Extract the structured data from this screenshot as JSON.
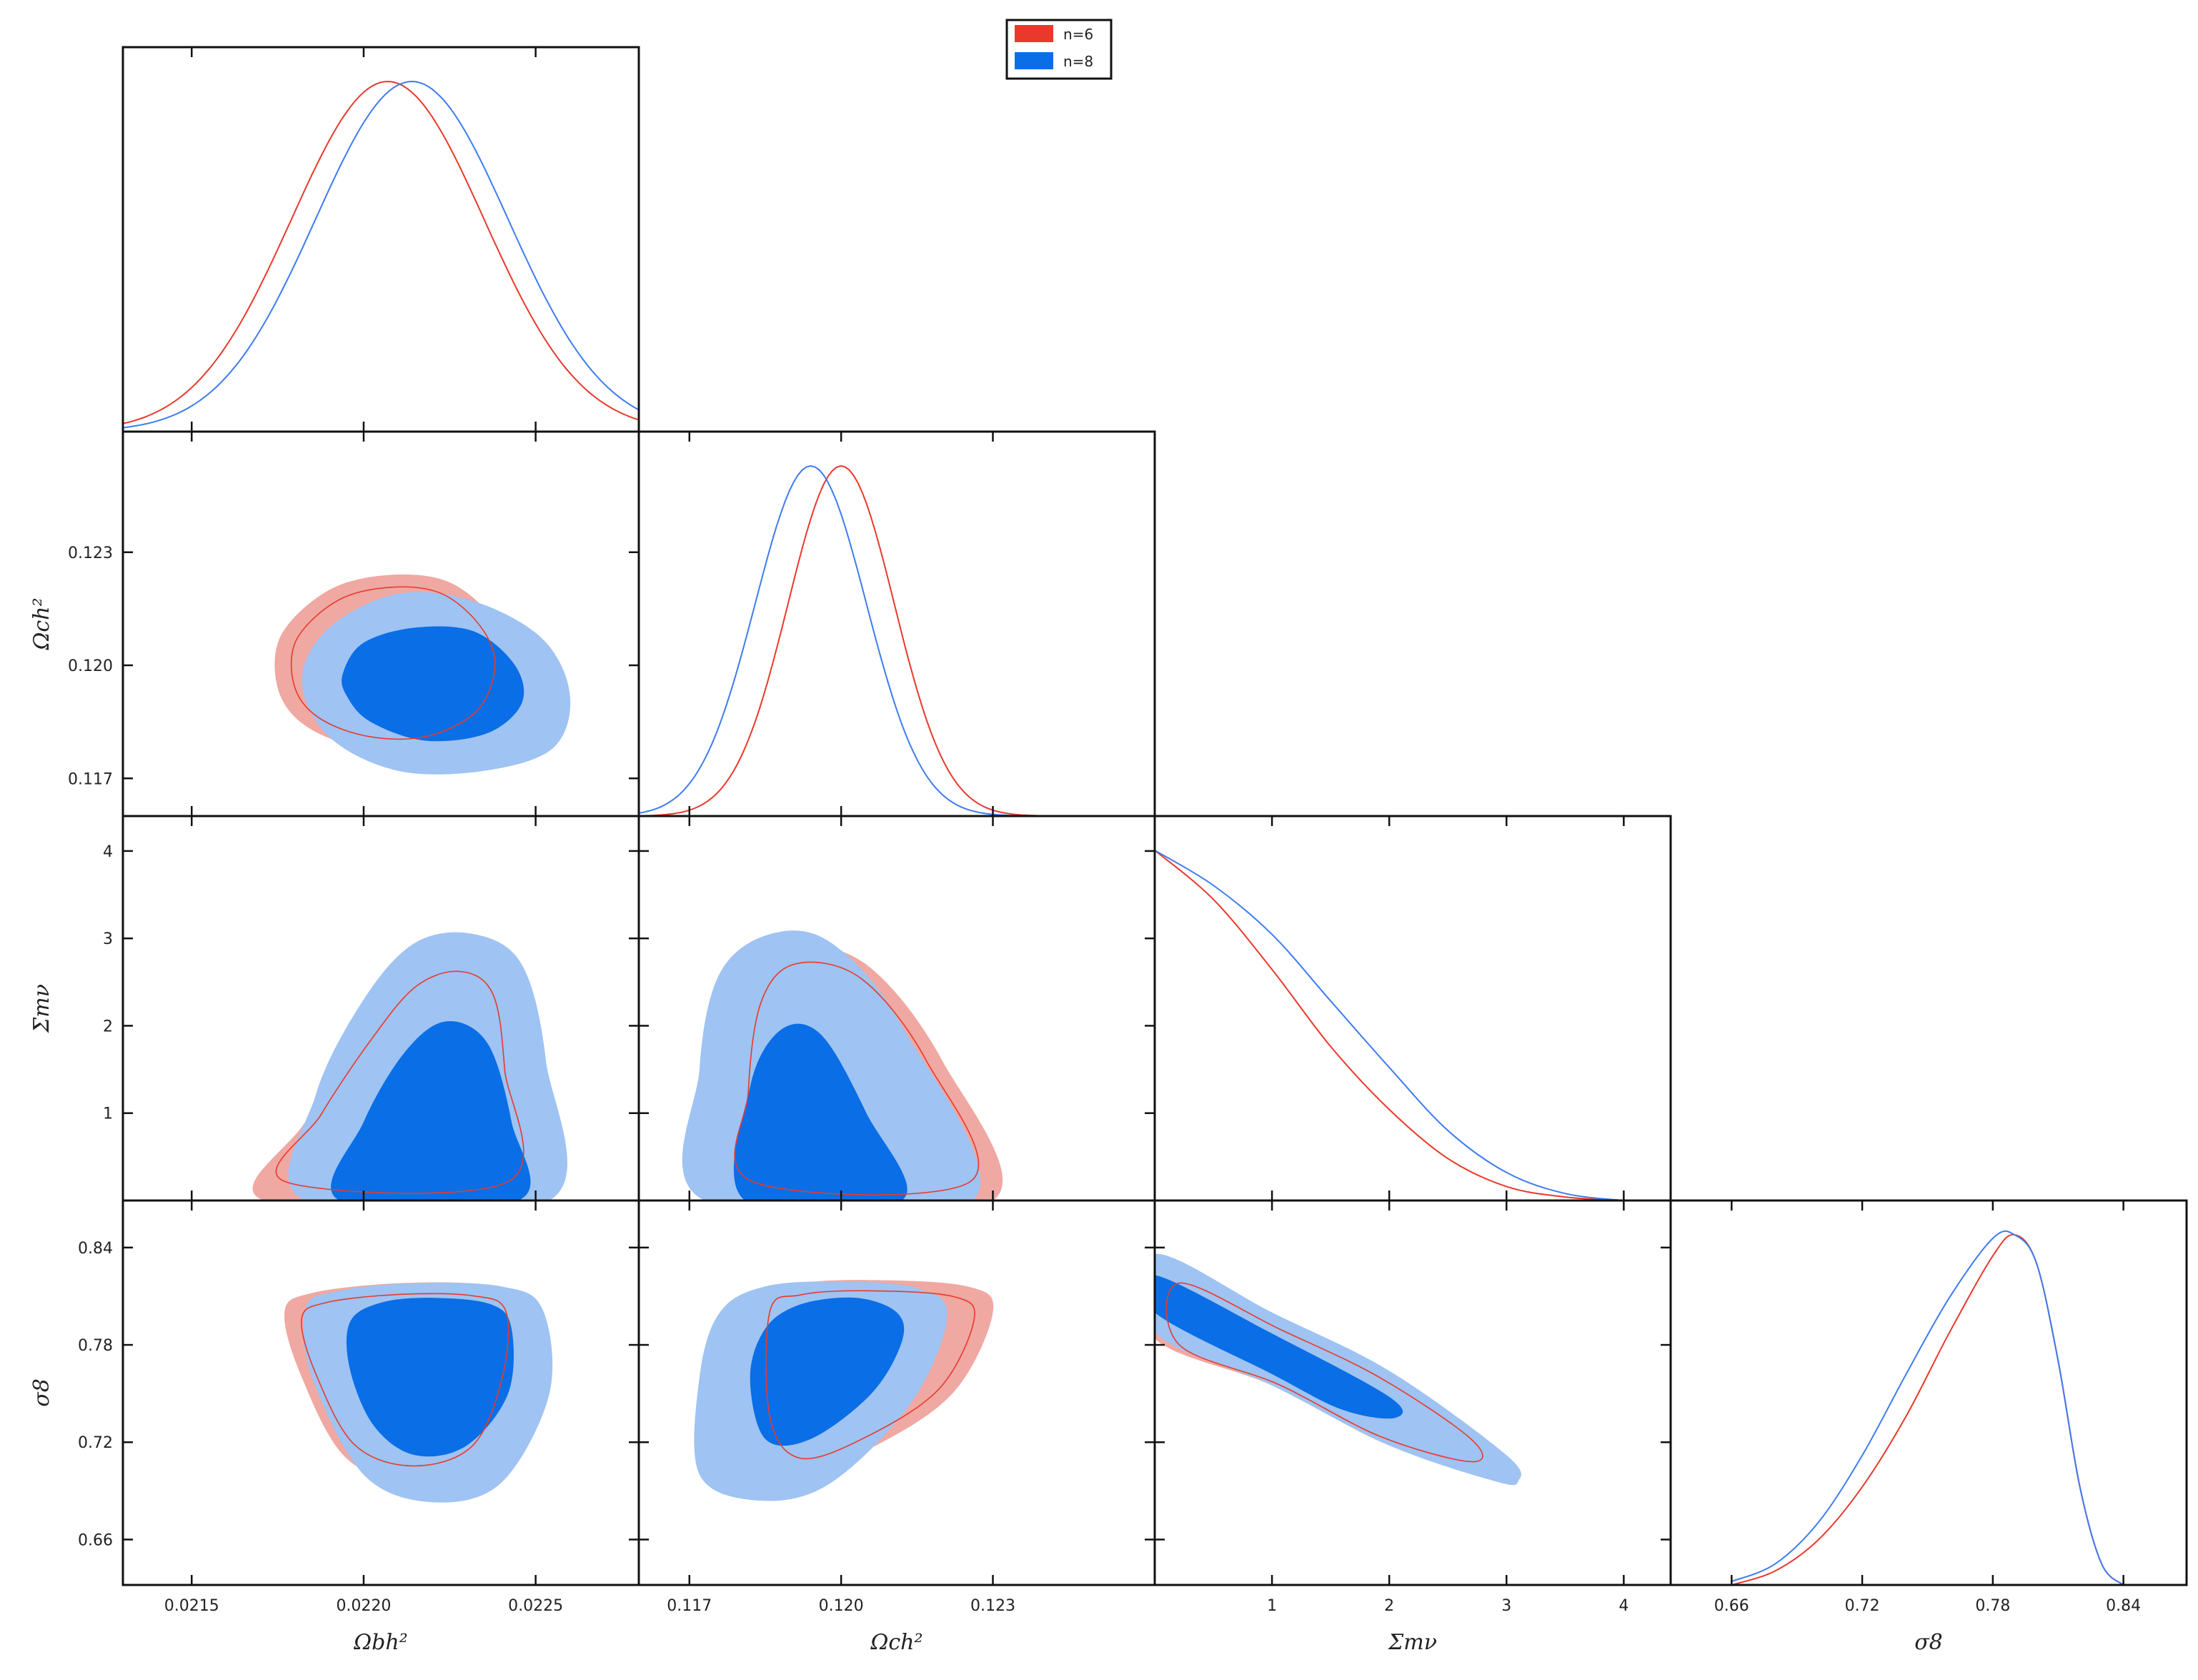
{
  "chart_data": {
    "type": "corner",
    "title": "",
    "legend": {
      "placement": "top-center",
      "entries": [
        {
          "label": "n=6",
          "color": "#e8392b"
        },
        {
          "label": "n=8",
          "color": "#0a6ee6"
        }
      ]
    },
    "colors": {
      "n6_line": "#e8392b",
      "n6_fill68": "#e8392b",
      "n6_fill95": "#f0a8a2",
      "n8_line": "#3d7cf0",
      "n8_fill68": "#0a6ee6",
      "n8_fill95": "#9fc3f2"
    },
    "parameters": [
      {
        "key": "ob",
        "label": "Ωbh²",
        "range": [
          0.0213,
          0.0228
        ],
        "ticks": [
          0.0215,
          0.022,
          0.0225
        ],
        "tick_labels": [
          "0.0215",
          "0.0220",
          "0.0225"
        ]
      },
      {
        "key": "oc",
        "label": "Ωch²",
        "range": [
          0.116,
          0.1262
        ],
        "ticks": [
          0.117,
          0.12,
          0.123
        ],
        "tick_labels": [
          "0.117",
          "0.120",
          "0.123"
        ]
      },
      {
        "key": "mnu",
        "label": "Σmν",
        "range": [
          0.0,
          4.4
        ],
        "ticks": [
          1,
          2,
          3,
          4
        ],
        "tick_labels": [
          "1",
          "2",
          "3",
          "4"
        ]
      },
      {
        "key": "s8",
        "label": "σ8",
        "range": [
          0.632,
          0.869
        ],
        "ticks": [
          0.66,
          0.72,
          0.78,
          0.84
        ],
        "tick_labels": [
          "0.66",
          "0.72",
          "0.78",
          "0.84"
        ]
      }
    ],
    "marginals": [
      {
        "param": "ob",
        "series": [
          {
            "name": "n=6",
            "peak": 0.02207,
            "sigma": 0.00028
          },
          {
            "name": "n=8",
            "peak": 0.02214,
            "sigma": 0.00028
          }
        ]
      },
      {
        "param": "oc",
        "series": [
          {
            "name": "n=6",
            "peak": 0.12,
            "sigma": 0.00105
          },
          {
            "name": "n=8",
            "peak": 0.1194,
            "sigma": 0.0011
          }
        ]
      },
      {
        "param": "mnu",
        "series": [
          {
            "name": "n=6",
            "x": [
              0.0,
              0.5,
              1.0,
              1.5,
              2.0,
              2.5,
              3.0,
              3.5,
              4.0
            ],
            "y": [
              1.0,
              0.86,
              0.66,
              0.44,
              0.26,
              0.12,
              0.04,
              0.01,
              0.0
            ]
          },
          {
            "name": "n=8",
            "x": [
              0.0,
              0.5,
              1.0,
              1.5,
              2.0,
              2.5,
              3.0,
              3.5,
              4.0
            ],
            "y": [
              1.0,
              0.9,
              0.76,
              0.57,
              0.38,
              0.2,
              0.08,
              0.02,
              0.0
            ]
          }
        ]
      },
      {
        "param": "s8",
        "series": [
          {
            "name": "n=6",
            "x": [
              0.66,
              0.68,
              0.7,
              0.72,
              0.74,
              0.76,
              0.78,
              0.79,
              0.8,
              0.81,
              0.82,
              0.83,
              0.84
            ],
            "y": [
              0.0,
              0.04,
              0.13,
              0.28,
              0.48,
              0.72,
              0.94,
              1.0,
              0.92,
              0.64,
              0.28,
              0.06,
              0.0
            ]
          },
          {
            "name": "n=8",
            "x": [
              0.66,
              0.68,
              0.7,
              0.72,
              0.74,
              0.76,
              0.78,
              0.79,
              0.8,
              0.81,
              0.82,
              0.83,
              0.84
            ],
            "y": [
              0.01,
              0.06,
              0.18,
              0.37,
              0.6,
              0.82,
              0.99,
              1.0,
              0.92,
              0.64,
              0.28,
              0.06,
              0.0
            ]
          }
        ]
      }
    ],
    "contours": [
      {
        "x": "ob",
        "y": "oc",
        "series": [
          {
            "name": "n=6",
            "level": "95",
            "points": [
              [
                0.02175,
                0.1194
              ],
              [
                0.02176,
                0.1208
              ],
              [
                0.0219,
                0.122
              ],
              [
                0.02208,
                0.1224
              ],
              [
                0.02225,
                0.1222
              ],
              [
                0.02238,
                0.1212
              ],
              [
                0.02243,
                0.12
              ],
              [
                0.02237,
                0.1186
              ],
              [
                0.0222,
                0.1178
              ],
              [
                0.022,
                0.1178
              ],
              [
                0.02183,
                0.1184
              ]
            ]
          },
          {
            "name": "n=8",
            "level": "95",
            "points": [
              [
                0.02182,
                0.1196
              ],
              [
                0.0219,
                0.121
              ],
              [
                0.0221,
                0.1219
              ],
              [
                0.02232,
                0.1217
              ],
              [
                0.02252,
                0.1207
              ],
              [
                0.0226,
                0.1192
              ],
              [
                0.02255,
                0.1178
              ],
              [
                0.02235,
                0.1172
              ],
              [
                0.0221,
                0.1172
              ],
              [
                0.0219,
                0.1181
              ]
            ]
          },
          {
            "name": "n=8",
            "level": "68",
            "points": [
              [
                0.02194,
                0.1198
              ],
              [
                0.022,
                0.1206
              ],
              [
                0.02215,
                0.121
              ],
              [
                0.02232,
                0.1209
              ],
              [
                0.02244,
                0.12
              ],
              [
                0.02246,
                0.119
              ],
              [
                0.02236,
                0.1182
              ],
              [
                0.02218,
                0.118
              ],
              [
                0.02202,
                0.1185
              ],
              [
                0.02195,
                0.1192
              ]
            ]
          }
        ]
      },
      {
        "x": "ob",
        "y": "mnu",
        "series": [
          {
            "name": "n=6",
            "level": "95",
            "points": [
              [
                0.02171,
                0.0
              ],
              [
                0.02183,
                0.9
              ],
              [
                0.022,
                1.9
              ],
              [
                0.02215,
                2.6
              ],
              [
                0.0223,
                2.8
              ],
              [
                0.02241,
                2.5
              ],
              [
                0.02245,
                1.5
              ],
              [
                0.02246,
                0.0
              ]
            ]
          },
          {
            "name": "n=8",
            "level": "95",
            "points": [
              [
                0.02183,
                0.0
              ],
              [
                0.02186,
                1.2
              ],
              [
                0.022,
                2.3
              ],
              [
                0.02215,
                2.95
              ],
              [
                0.02232,
                3.05
              ],
              [
                0.02246,
                2.7
              ],
              [
                0.02253,
                1.6
              ],
              [
                0.02254,
                0.0
              ]
            ]
          },
          {
            "name": "n=8",
            "level": "68",
            "points": [
              [
                0.02193,
                0.0
              ],
              [
                0.022,
                0.9
              ],
              [
                0.02212,
                1.7
              ],
              [
                0.02224,
                2.05
              ],
              [
                0.02236,
                1.8
              ],
              [
                0.02243,
                0.9
              ],
              [
                0.02245,
                0.0
              ]
            ]
          }
        ]
      },
      {
        "x": "oc",
        "y": "mnu",
        "series": [
          {
            "name": "n=6",
            "level": "95",
            "points": [
              [
                0.118,
                0.0
              ],
              [
                0.1179,
                1.2
              ],
              [
                0.1182,
                2.4
              ],
              [
                0.119,
                2.9
              ],
              [
                0.1205,
                2.7
              ],
              [
                0.122,
                1.6
              ],
              [
                0.123,
                0.0
              ]
            ]
          },
          {
            "name": "n=8",
            "level": "95",
            "points": [
              [
                0.1173,
                0.0
              ],
              [
                0.1172,
                1.5
              ],
              [
                0.1176,
                2.6
              ],
              [
                0.1186,
                3.05
              ],
              [
                0.1198,
                2.95
              ],
              [
                0.1212,
                2.0
              ],
              [
                0.1226,
                0.0
              ]
            ]
          },
          {
            "name": "n=8",
            "level": "68",
            "points": [
              [
                0.1181,
                0.0
              ],
              [
                0.1182,
                1.3
              ],
              [
                0.1188,
                1.95
              ],
              [
                0.1196,
                1.9
              ],
              [
                0.1205,
                1.0
              ],
              [
                0.1212,
                0.0
              ]
            ]
          }
        ]
      },
      {
        "x": "ob",
        "y": "s8",
        "series": [
          {
            "name": "n=6",
            "level": "95",
            "points": [
              [
                0.02177,
                0.8
              ],
              [
                0.02185,
                0.812
              ],
              [
                0.0221,
                0.818
              ],
              [
                0.02235,
                0.817
              ],
              [
                0.02246,
                0.806
              ],
              [
                0.02245,
                0.76
              ],
              [
                0.02235,
                0.71
              ],
              [
                0.02215,
                0.695
              ],
              [
                0.02195,
                0.71
              ],
              [
                0.02182,
                0.76
              ]
            ]
          },
          {
            "name": "n=8",
            "level": "95",
            "points": [
              [
                0.02183,
                0.802
              ],
              [
                0.02192,
                0.813
              ],
              [
                0.02215,
                0.818
              ],
              [
                0.0224,
                0.816
              ],
              [
                0.02252,
                0.802
              ],
              [
                0.02254,
                0.75
              ],
              [
                0.0224,
                0.695
              ],
              [
                0.0222,
                0.683
              ],
              [
                0.022,
                0.7
              ],
              [
                0.02185,
                0.76
              ]
            ]
          },
          {
            "name": "n=8",
            "level": "68",
            "points": [
              [
                0.02196,
                0.794
              ],
              [
                0.02205,
                0.806
              ],
              [
                0.0222,
                0.809
              ],
              [
                0.02237,
                0.805
              ],
              [
                0.02243,
                0.79
              ],
              [
                0.02242,
                0.75
              ],
              [
                0.0223,
                0.718
              ],
              [
                0.02215,
                0.712
              ],
              [
                0.02203,
                0.73
              ],
              [
                0.02196,
                0.765
              ]
            ]
          }
        ]
      },
      {
        "x": "oc",
        "y": "s8",
        "series": [
          {
            "name": "n=6",
            "level": "95",
            "points": [
              [
                0.1183,
                0.805
              ],
              [
                0.119,
                0.817
              ],
              [
                0.1205,
                0.82
              ],
              [
                0.1225,
                0.816
              ],
              [
                0.123,
                0.8
              ],
              [
                0.1222,
                0.75
              ],
              [
                0.1205,
                0.715
              ],
              [
                0.119,
                0.7
              ],
              [
                0.1183,
                0.73
              ]
            ]
          },
          {
            "name": "n=8",
            "level": "95",
            "points": [
              [
                0.1176,
                0.8
              ],
              [
                0.1185,
                0.816
              ],
              [
                0.12,
                0.819
              ],
              [
                0.1215,
                0.815
              ],
              [
                0.1221,
                0.798
              ],
              [
                0.1214,
                0.745
              ],
              [
                0.1198,
                0.695
              ],
              [
                0.1184,
                0.684
              ],
              [
                0.1172,
                0.7
              ],
              [
                0.1172,
                0.76
              ]
            ]
          },
          {
            "name": "n=8",
            "level": "68",
            "points": [
              [
                0.1185,
                0.79
              ],
              [
                0.1192,
                0.805
              ],
              [
                0.1203,
                0.809
              ],
              [
                0.1211,
                0.8
              ],
              [
                0.1212,
                0.782
              ],
              [
                0.1206,
                0.75
              ],
              [
                0.1194,
                0.722
              ],
              [
                0.1185,
                0.722
              ],
              [
                0.1182,
                0.76
              ]
            ]
          }
        ]
      },
      {
        "x": "mnu",
        "y": "s8",
        "series": [
          {
            "name": "n=6",
            "level": "95",
            "points": [
              [
                0.0,
                0.828
              ],
              [
                1.0,
                0.795
              ],
              [
                2.0,
                0.76
              ],
              [
                2.9,
                0.716
              ],
              [
                2.9,
                0.7
              ],
              [
                2.0,
                0.718
              ],
              [
                1.0,
                0.755
              ],
              [
                0.0,
                0.784
              ]
            ]
          },
          {
            "name": "n=8",
            "level": "95",
            "points": [
              [
                0.0,
                0.836
              ],
              [
                1.0,
                0.8
              ],
              [
                2.0,
                0.764
              ],
              [
                3.0,
                0.712
              ],
              [
                3.1,
                0.696
              ],
              [
                2.9,
                0.696
              ],
              [
                2.0,
                0.718
              ],
              [
                1.0,
                0.755
              ],
              [
                0.0,
                0.788
              ]
            ]
          },
          {
            "name": "n=8",
            "level": "68",
            "points": [
              [
                0.0,
                0.823
              ],
              [
                1.0,
                0.787
              ],
              [
                2.0,
                0.748
              ],
              [
                2.05,
                0.735
              ],
              [
                1.6,
                0.74
              ],
              [
                1.0,
                0.762
              ],
              [
                0.0,
                0.8
              ]
            ]
          }
        ]
      }
    ]
  }
}
